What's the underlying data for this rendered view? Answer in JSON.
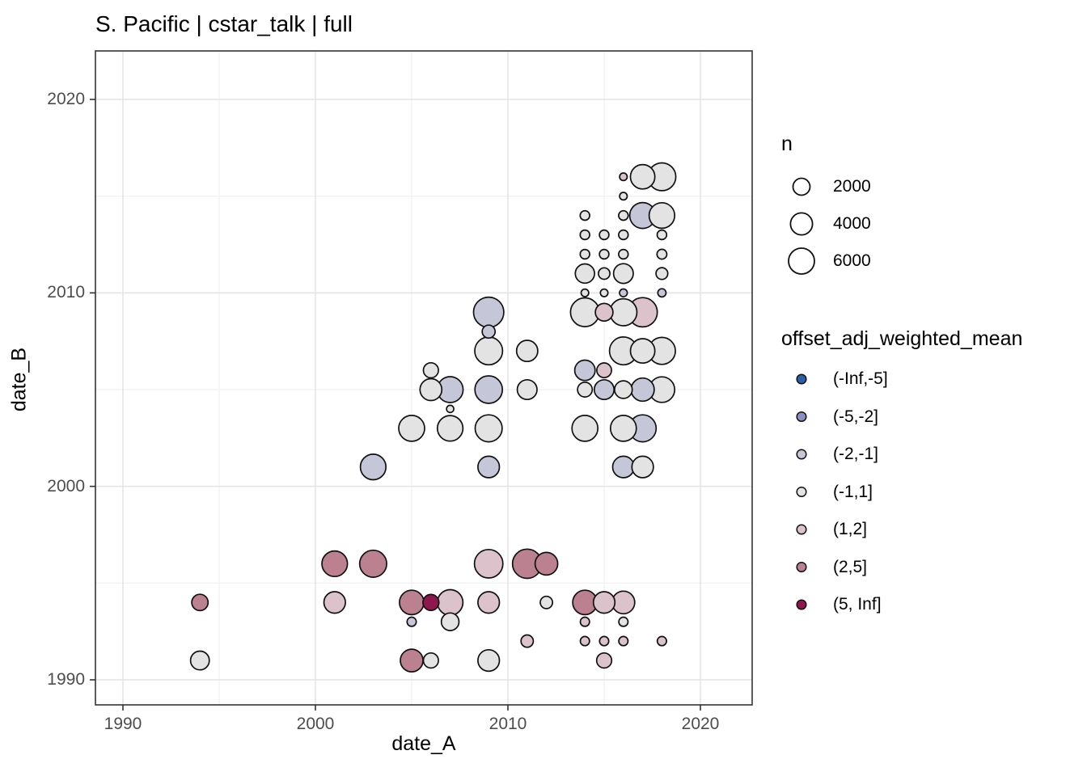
{
  "title": "S. Pacific | cstar_talk | full",
  "axes": {
    "x": {
      "label": "date_A",
      "ticks": [
        "1990",
        "2000",
        "2010",
        "2020"
      ],
      "tick_years": [
        1990,
        2000,
        2010,
        2020
      ],
      "minor_years": [
        1995,
        2005,
        2015
      ],
      "range": [
        1988.6,
        2022.7
      ]
    },
    "y": {
      "label": "date_B",
      "ticks": [
        "1990",
        "2000",
        "2010",
        "2020"
      ],
      "tick_years": [
        1990,
        2000,
        2010,
        2020
      ],
      "minor_years": [
        1995,
        2005,
        2015
      ],
      "range": [
        1988.7,
        2022.5
      ]
    }
  },
  "legend_size": {
    "title": "n",
    "entries": [
      {
        "label": "2000",
        "n": 2000
      },
      {
        "label": "4000",
        "n": 4000
      },
      {
        "label": "6000",
        "n": 6000
      }
    ]
  },
  "legend_color": {
    "title": "offset_adj_weighted_mean",
    "entries": [
      {
        "label": "(-Inf,-5]",
        "color": "#2b5fa6"
      },
      {
        "label": "(-5,-2]",
        "color": "#8a90bf"
      },
      {
        "label": "(-2,-1]",
        "color": "#c5c7d9"
      },
      {
        "label": "(-1,1]",
        "color": "#e3e3e3"
      },
      {
        "label": "(1,2]",
        "color": "#dcc2ca"
      },
      {
        "label": "(2,5]",
        "color": "#bc8191"
      },
      {
        "label": "(5, Inf]",
        "color": "#8e184d"
      }
    ]
  },
  "chart_data": {
    "type": "scatter",
    "subtype": "bubble",
    "title": "S. Pacific | cstar_talk | full",
    "xlabel": "date_A",
    "ylabel": "date_B",
    "xlim": [
      1988.6,
      2022.7
    ],
    "ylim": [
      1988.7,
      2022.5
    ],
    "grid": true,
    "legend_position": "right",
    "size_variable": "n",
    "color_variable": "offset_adj_weighted_mean",
    "points": [
      {
        "date_A": 2016,
        "date_B": 2016,
        "n": 100,
        "offset_bin": "(1,2]"
      },
      {
        "date_A": 2017,
        "date_B": 2016,
        "n": 5200,
        "offset_bin": "(-1,1]"
      },
      {
        "date_A": 2018,
        "date_B": 2016,
        "n": 7200,
        "offset_bin": "(-1,1]"
      },
      {
        "date_A": 2016,
        "date_B": 2015,
        "n": 100,
        "offset_bin": "(-1,1]"
      },
      {
        "date_A": 2014,
        "date_B": 2014,
        "n": 300,
        "offset_bin": "(-1,1]"
      },
      {
        "date_A": 2016,
        "date_B": 2014,
        "n": 300,
        "offset_bin": "(-1,1]"
      },
      {
        "date_A": 2017,
        "date_B": 2014,
        "n": 6000,
        "offset_bin": "(-2,-1]"
      },
      {
        "date_A": 2018,
        "date_B": 2014,
        "n": 5800,
        "offset_bin": "(-1,1]"
      },
      {
        "date_A": 2014,
        "date_B": 2013,
        "n": 300,
        "offset_bin": "(-1,1]"
      },
      {
        "date_A": 2015,
        "date_B": 2013,
        "n": 300,
        "offset_bin": "(-1,1]"
      },
      {
        "date_A": 2016,
        "date_B": 2013,
        "n": 300,
        "offset_bin": "(-1,1]"
      },
      {
        "date_A": 2018,
        "date_B": 2013,
        "n": 300,
        "offset_bin": "(-1,1]"
      },
      {
        "date_A": 2014,
        "date_B": 2012,
        "n": 300,
        "offset_bin": "(-1,1]"
      },
      {
        "date_A": 2015,
        "date_B": 2012,
        "n": 300,
        "offset_bin": "(-1,1]"
      },
      {
        "date_A": 2016,
        "date_B": 2012,
        "n": 300,
        "offset_bin": "(-1,1]"
      },
      {
        "date_A": 2018,
        "date_B": 2012,
        "n": 350,
        "offset_bin": "(-1,1]"
      },
      {
        "date_A": 2014,
        "date_B": 2011,
        "n": 2800,
        "offset_bin": "(-1,1]"
      },
      {
        "date_A": 2015,
        "date_B": 2011,
        "n": 600,
        "offset_bin": "(-1,1]"
      },
      {
        "date_A": 2016,
        "date_B": 2011,
        "n": 3000,
        "offset_bin": "(-1,1]"
      },
      {
        "date_A": 2018,
        "date_B": 2011,
        "n": 650,
        "offset_bin": "(-1,1]"
      },
      {
        "date_A": 2014,
        "date_B": 2010,
        "n": 100,
        "offset_bin": "(-1,1]"
      },
      {
        "date_A": 2015,
        "date_B": 2010,
        "n": 100,
        "offset_bin": "(-1,1]"
      },
      {
        "date_A": 2016,
        "date_B": 2010,
        "n": 120,
        "offset_bin": "(-2,-1]"
      },
      {
        "date_A": 2018,
        "date_B": 2010,
        "n": 150,
        "offset_bin": "(-2,-1]"
      },
      {
        "date_A": 2014,
        "date_B": 2009,
        "n": 7800,
        "offset_bin": "(-1,1]"
      },
      {
        "date_A": 2015,
        "date_B": 2009,
        "n": 2200,
        "offset_bin": "(1,2]"
      },
      {
        "date_A": 2016,
        "date_B": 2009,
        "n": 6700,
        "offset_bin": "(-1,1]"
      },
      {
        "date_A": 2017,
        "date_B": 2009,
        "n": 8100,
        "offset_bin": "(1,2]"
      },
      {
        "date_A": 2016,
        "date_B": 2007,
        "n": 7200,
        "offset_bin": "(-1,1]"
      },
      {
        "date_A": 2017,
        "date_B": 2007,
        "n": 5200,
        "offset_bin": "(-1,1]"
      },
      {
        "date_A": 2018,
        "date_B": 2007,
        "n": 6700,
        "offset_bin": "(-1,1]"
      },
      {
        "date_A": 2014,
        "date_B": 2006,
        "n": 3300,
        "offset_bin": "(-2,-1]"
      },
      {
        "date_A": 2015,
        "date_B": 2006,
        "n": 1300,
        "offset_bin": "(1,2]"
      },
      {
        "date_A": 2014,
        "date_B": 2005,
        "n": 1300,
        "offset_bin": "(-1,1]"
      },
      {
        "date_A": 2015,
        "date_B": 2005,
        "n": 3000,
        "offset_bin": "(-2,-1]"
      },
      {
        "date_A": 2016,
        "date_B": 2005,
        "n": 2200,
        "offset_bin": "(-1,1]"
      },
      {
        "date_A": 2017,
        "date_B": 2005,
        "n": 4500,
        "offset_bin": "(-2,-1]"
      },
      {
        "date_A": 2018,
        "date_B": 2005,
        "n": 5800,
        "offset_bin": "(-1,1]"
      },
      {
        "date_A": 2014,
        "date_B": 2003,
        "n": 6000,
        "offset_bin": "(-1,1]"
      },
      {
        "date_A": 2016,
        "date_B": 2003,
        "n": 6000,
        "offset_bin": "(-1,1]"
      },
      {
        "date_A": 2017,
        "date_B": 2003,
        "n": 6700,
        "offset_bin": "(-2,-1]"
      },
      {
        "date_A": 2016,
        "date_B": 2001,
        "n": 3800,
        "offset_bin": "(-2,-1]"
      },
      {
        "date_A": 2017,
        "date_B": 2001,
        "n": 3800,
        "offset_bin": "(-1,1]"
      },
      {
        "date_A": 2009,
        "date_B": 2009,
        "n": 8800,
        "offset_bin": "(-2,-1]"
      },
      {
        "date_A": 2009,
        "date_B": 2008,
        "n": 900,
        "offset_bin": "(-2,-1]"
      },
      {
        "date_A": 2009,
        "date_B": 2007,
        "n": 7200,
        "offset_bin": "(-1,1]"
      },
      {
        "date_A": 2011,
        "date_B": 2007,
        "n": 3600,
        "offset_bin": "(-1,1]"
      },
      {
        "date_A": 2006,
        "date_B": 2006,
        "n": 1400,
        "offset_bin": "(-1,1]"
      },
      {
        "date_A": 2006,
        "date_B": 2005,
        "n": 3900,
        "offset_bin": "(-1,1]"
      },
      {
        "date_A": 2007,
        "date_B": 2005,
        "n": 6000,
        "offset_bin": "(-2,-1]"
      },
      {
        "date_A": 2009,
        "date_B": 2005,
        "n": 7000,
        "offset_bin": "(-2,-1]"
      },
      {
        "date_A": 2011,
        "date_B": 2005,
        "n": 3000,
        "offset_bin": "(-1,1]"
      },
      {
        "date_A": 2007,
        "date_B": 2004,
        "n": 80,
        "offset_bin": "(-1,1]"
      },
      {
        "date_A": 2005,
        "date_B": 2003,
        "n": 6000,
        "offset_bin": "(-1,1]"
      },
      {
        "date_A": 2007,
        "date_B": 2003,
        "n": 5800,
        "offset_bin": "(-1,1]"
      },
      {
        "date_A": 2009,
        "date_B": 2003,
        "n": 6700,
        "offset_bin": "(-1,1]"
      },
      {
        "date_A": 2003,
        "date_B": 2001,
        "n": 5800,
        "offset_bin": "(-2,-1]"
      },
      {
        "date_A": 2009,
        "date_B": 2001,
        "n": 3800,
        "offset_bin": "(-2,-1]"
      },
      {
        "date_A": 1994,
        "date_B": 1994,
        "n": 1800,
        "offset_bin": "(2,5]"
      },
      {
        "date_A": 1994,
        "date_B": 1991,
        "n": 2600,
        "offset_bin": "(-1,1]"
      },
      {
        "date_A": 2001,
        "date_B": 1996,
        "n": 5800,
        "offset_bin": "(2,5]"
      },
      {
        "date_A": 2003,
        "date_B": 1996,
        "n": 6700,
        "offset_bin": "(2,5]"
      },
      {
        "date_A": 2001,
        "date_B": 1994,
        "n": 3800,
        "offset_bin": "(1,2]"
      },
      {
        "date_A": 2009,
        "date_B": 1996,
        "n": 7600,
        "offset_bin": "(1,2]"
      },
      {
        "date_A": 2011,
        "date_B": 1996,
        "n": 8100,
        "offset_bin": "(2,5]"
      },
      {
        "date_A": 2012,
        "date_B": 1996,
        "n": 4300,
        "offset_bin": "(2,5]"
      },
      {
        "date_A": 2005,
        "date_B": 1994,
        "n": 5200,
        "offset_bin": "(2,5]"
      },
      {
        "date_A": 2006,
        "date_B": 1994,
        "n": 1700,
        "offset_bin": "(5, Inf]"
      },
      {
        "date_A": 2007,
        "date_B": 1994,
        "n": 5800,
        "offset_bin": "(1,2]"
      },
      {
        "date_A": 2009,
        "date_B": 1994,
        "n": 3800,
        "offset_bin": "(1,2]"
      },
      {
        "date_A": 2012,
        "date_B": 1994,
        "n": 750,
        "offset_bin": "(-1,1]"
      },
      {
        "date_A": 2014,
        "date_B": 1994,
        "n": 5200,
        "offset_bin": "(2,5]"
      },
      {
        "date_A": 2015,
        "date_B": 1994,
        "n": 3800,
        "offset_bin": "(1,2]"
      },
      {
        "date_A": 2016,
        "date_B": 1994,
        "n": 4300,
        "offset_bin": "(1,2]"
      },
      {
        "date_A": 2005,
        "date_B": 1993,
        "n": 250,
        "offset_bin": "(-2,-1]"
      },
      {
        "date_A": 2007,
        "date_B": 1993,
        "n": 2200,
        "offset_bin": "(-1,1]"
      },
      {
        "date_A": 2014,
        "date_B": 1993,
        "n": 250,
        "offset_bin": "(1,2]"
      },
      {
        "date_A": 2016,
        "date_B": 1993,
        "n": 250,
        "offset_bin": "(-1,1]"
      },
      {
        "date_A": 2011,
        "date_B": 1992,
        "n": 750,
        "offset_bin": "(1,2]"
      },
      {
        "date_A": 2014,
        "date_B": 1992,
        "n": 250,
        "offset_bin": "(1,2]"
      },
      {
        "date_A": 2015,
        "date_B": 1992,
        "n": 250,
        "offset_bin": "(1,2]"
      },
      {
        "date_A": 2016,
        "date_B": 1992,
        "n": 250,
        "offset_bin": "(1,2]"
      },
      {
        "date_A": 2018,
        "date_B": 1992,
        "n": 250,
        "offset_bin": "(1,2]"
      },
      {
        "date_A": 2015,
        "date_B": 1991,
        "n": 1400,
        "offset_bin": "(1,2]"
      },
      {
        "date_A": 2005,
        "date_B": 1991,
        "n": 4300,
        "offset_bin": "(2,5]"
      },
      {
        "date_A": 2006,
        "date_B": 1991,
        "n": 1400,
        "offset_bin": "(-1,1]"
      },
      {
        "date_A": 2009,
        "date_B": 1991,
        "n": 3800,
        "offset_bin": "(-1,1]"
      }
    ]
  }
}
